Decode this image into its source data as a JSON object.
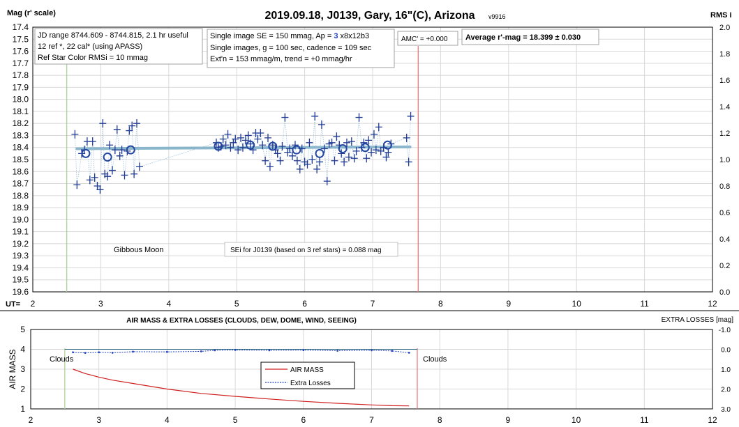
{
  "chart_data": [
    {
      "type": "scatter",
      "title": "2019.09.18, J0139, Gary, 16\"(C), Arizona",
      "version": "v9916",
      "ylabel": "Mag (r' scale)",
      "y2label": "RMS i",
      "xlabel": "UT=",
      "xlim": [
        2,
        12
      ],
      "ylim": [
        17.4,
        19.6
      ],
      "y2lim": [
        0.0,
        2.0
      ],
      "x_ticks": [
        "2",
        "3",
        "4",
        "5",
        "6",
        "7",
        "8",
        "9",
        "10",
        "11",
        "12"
      ],
      "y_ticks": [
        "17.4",
        "17.5",
        "17.6",
        "17.7",
        "17.8",
        "17.9",
        "18.0",
        "18.1",
        "18.2",
        "18.3",
        "18.4",
        "18.5",
        "18.6",
        "18.7",
        "18.8",
        "18.9",
        "19.0",
        "19.1",
        "19.2",
        "19.3",
        "19.4",
        "19.5",
        "19.6"
      ],
      "y2_ticks": [
        "2.0",
        "1.8",
        "1.6",
        "1.4",
        "1.2",
        "1.0",
        "0.8",
        "0.6",
        "0.4",
        "0.2",
        "0.0"
      ],
      "boxes": {
        "box1": [
          "JD range 8744.609 - 8744.815, 2.1 hr useful",
          "12 ref *, 22 cal* (using APASS)",
          "Ref Star Color RMSi = 10 mmag"
        ],
        "box2_line1_pre": "Single image SE = 150 mmag, Ap = ",
        "box2_line1_ap": "3",
        "box2_line1_post": " x8x12b3",
        "box2_line2": "Single images, g = 100 sec, cadence = 109 sec",
        "box2_line3": "Ext'n = 153 mmag/m, trend = +0 mmag/hr",
        "amc": "AMC' = +0.000",
        "average": "Average r'-mag =  18.399 ± 0.030"
      },
      "annotations": {
        "moon": "Gibbous Moon",
        "sei": "SEi for J0139 (based on 3 ref stars) = 0.088 mag"
      },
      "limits_ut": [
        2.5,
        7.67
      ],
      "trend": {
        "x": [
          2.65,
          7.55
        ],
        "y": [
          18.41,
          18.395
        ]
      },
      "single_images": {
        "x": [
          2.62,
          2.65,
          2.72,
          2.76,
          2.8,
          2.84,
          2.88,
          2.91,
          2.95,
          2.99,
          3.03,
          3.06,
          3.1,
          3.13,
          3.17,
          3.21,
          3.24,
          3.28,
          3.31,
          3.35,
          3.39,
          3.42,
          3.46,
          3.49,
          3.53,
          3.57,
          4.7,
          4.73,
          4.77,
          4.8,
          4.84,
          4.87,
          4.91,
          4.95,
          4.98,
          5.02,
          5.06,
          5.09,
          5.13,
          5.17,
          5.2,
          5.24,
          5.28,
          5.31,
          5.35,
          5.38,
          5.42,
          5.46,
          5.49,
          5.53,
          5.57,
          5.6,
          5.64,
          5.67,
          5.71,
          5.75,
          5.78,
          5.82,
          5.86,
          5.89,
          5.93,
          5.96,
          6.0,
          6.04,
          6.07,
          6.11,
          6.15,
          6.18,
          6.22,
          6.25,
          6.29,
          6.33,
          6.36,
          6.4,
          6.44,
          6.47,
          6.51,
          6.54,
          6.58,
          6.62,
          6.65,
          6.69,
          6.73,
          6.76,
          6.8,
          6.84,
          6.87,
          6.91,
          6.94,
          6.98,
          7.02,
          7.05,
          7.09,
          7.12,
          7.16,
          7.2,
          7.23,
          7.27,
          7.5,
          7.53,
          7.56
        ],
        "y": [
          18.29,
          18.71,
          18.45,
          18.42,
          18.35,
          18.67,
          18.35,
          18.65,
          18.72,
          18.75,
          18.2,
          18.62,
          18.64,
          18.38,
          18.59,
          18.42,
          18.25,
          18.47,
          18.42,
          18.63,
          18.43,
          18.26,
          18.22,
          18.62,
          18.2,
          18.56,
          18.36,
          18.4,
          18.39,
          18.33,
          18.38,
          18.29,
          18.4,
          18.36,
          18.33,
          18.42,
          18.32,
          18.4,
          18.34,
          18.3,
          18.37,
          18.42,
          18.28,
          18.33,
          18.28,
          18.38,
          18.51,
          18.32,
          18.56,
          18.38,
          18.42,
          18.45,
          18.51,
          18.39,
          18.15,
          18.44,
          18.41,
          18.47,
          18.38,
          18.51,
          18.58,
          18.41,
          18.52,
          18.54,
          18.36,
          18.5,
          18.14,
          18.58,
          18.52,
          18.21,
          18.41,
          18.68,
          18.37,
          18.36,
          18.51,
          18.31,
          18.38,
          18.45,
          18.52,
          18.36,
          18.48,
          18.35,
          18.49,
          18.43,
          18.15,
          18.4,
          18.36,
          18.49,
          18.34,
          18.44,
          18.29,
          18.42,
          18.23,
          18.43,
          18.4,
          18.48,
          18.44,
          18.37,
          18.32,
          18.52,
          18.14
        ]
      },
      "averages": {
        "x": [
          2.78,
          3.1,
          3.44,
          4.73,
          5.2,
          5.53,
          5.88,
          6.22,
          6.56,
          6.89,
          7.22
        ],
        "y": [
          18.45,
          18.48,
          18.42,
          18.39,
          18.38,
          18.39,
          18.42,
          18.45,
          18.41,
          18.4,
          18.38
        ]
      }
    },
    {
      "type": "line",
      "title": "AIR MASS & EXTRA LOSSES (CLOUDS, DEW, DOME, WIND, SEEING)",
      "ylabel": "AIR MASS",
      "y2label": "EXTRA LOSSES [mag]",
      "xlim": [
        2,
        12
      ],
      "ylim": [
        1,
        5
      ],
      "y2lim": [
        -1.0,
        3.0
      ],
      "x_ticks": [
        "2",
        "3",
        "4",
        "5",
        "6",
        "7",
        "8",
        "9",
        "10",
        "11",
        "12"
      ],
      "y_ticks": [
        "5",
        "4",
        "3",
        "2",
        "1"
      ],
      "y2_ticks": [
        "-1.0",
        "0.0",
        "1.0",
        "2.0",
        "3.0"
      ],
      "labels": {
        "clouds_left": "Clouds",
        "clouds_right": "Clouds"
      },
      "legend": [
        "AIR MASS",
        "Extra Losses"
      ],
      "air_mass": {
        "x": [
          2.62,
          2.8,
          3.0,
          3.2,
          3.5,
          4.0,
          4.5,
          5.0,
          5.5,
          6.0,
          6.5,
          7.0,
          7.3,
          7.55
        ],
        "y": [
          3.0,
          2.78,
          2.6,
          2.45,
          2.28,
          2.0,
          1.78,
          1.63,
          1.5,
          1.38,
          1.28,
          1.2,
          1.16,
          1.15
        ]
      },
      "extra_losses": {
        "x": [
          2.62,
          2.8,
          3.0,
          3.2,
          3.5,
          4.0,
          4.5,
          4.7,
          5.0,
          5.5,
          6.0,
          6.5,
          7.0,
          7.3,
          7.55
        ],
        "y": [
          0.15,
          0.18,
          0.15,
          0.17,
          0.12,
          0.13,
          0.1,
          0.05,
          0.03,
          0.05,
          0.04,
          0.07,
          0.05,
          0.08,
          0.17
        ]
      },
      "reference_line": {
        "x": [
          2.5,
          7.67
        ],
        "y": [
          0.0,
          0.0
        ]
      },
      "limits_ut": [
        2.5,
        7.67
      ]
    }
  ],
  "colors": {
    "grid": "#d8d8d8",
    "marker": "#1f3a93",
    "average_circle": "#2346a0",
    "trend": "#7fb0c8",
    "limit_left": "#a6d08a",
    "limit_right": "#e07070",
    "air_mass": "#d02020",
    "extra_losses": "#2040c0",
    "ap_highlight": "#1f3ec8"
  }
}
